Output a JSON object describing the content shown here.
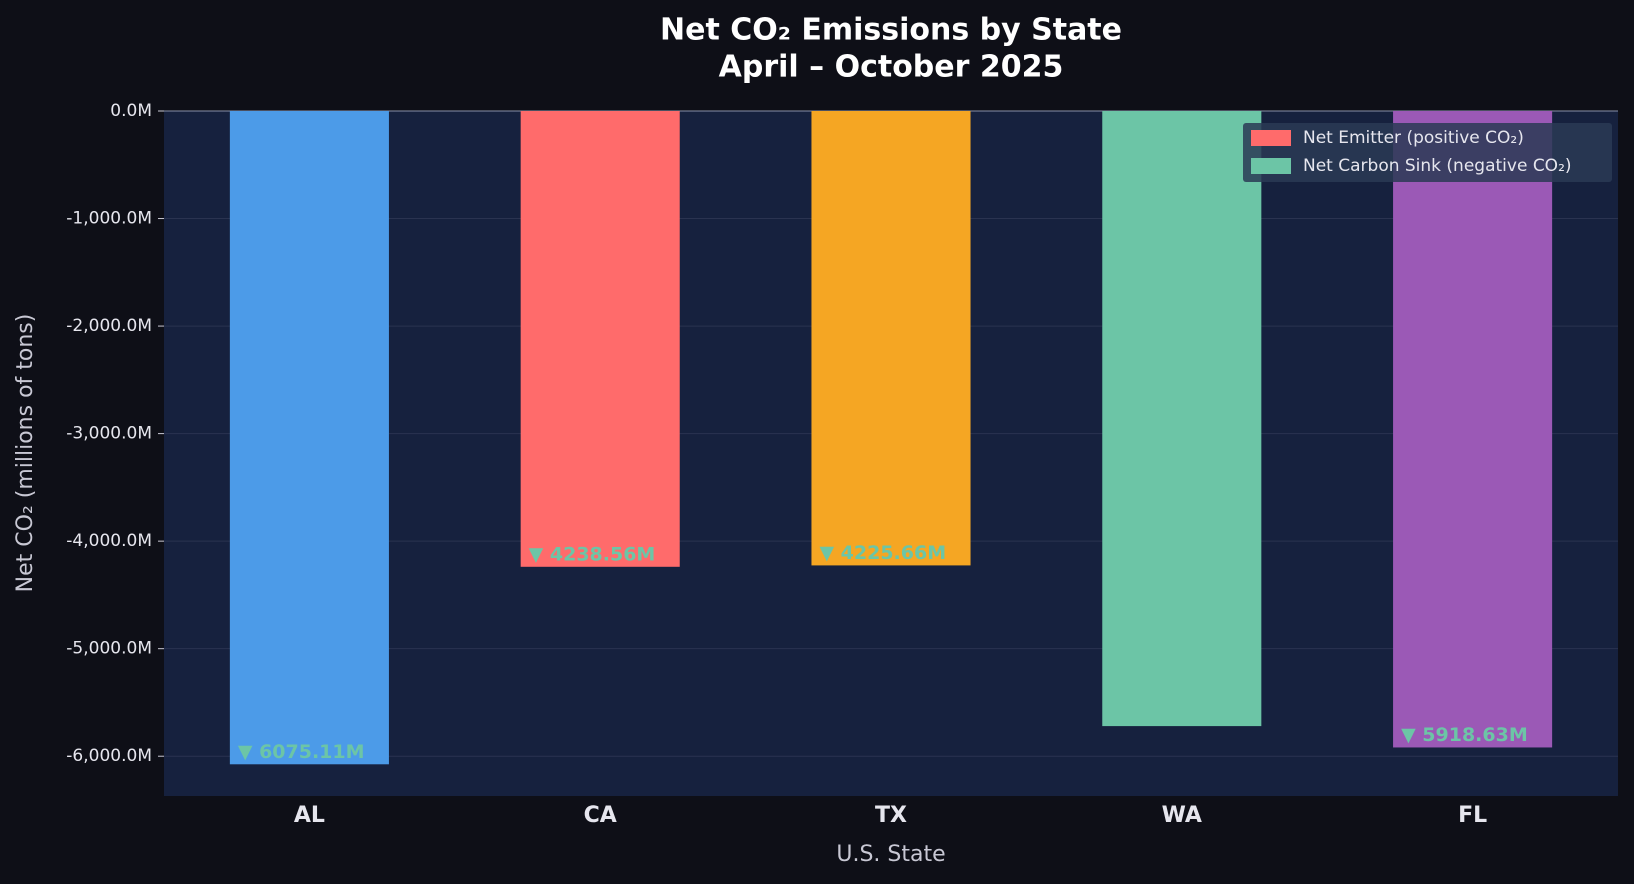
{
  "chart_data": {
    "type": "bar",
    "title": "Net CO₂ Emissions by State",
    "subtitle": "April – October 2025",
    "x_label": "U.S. State",
    "y_label": "Net CO₂ (millions of tons)",
    "categories": [
      "AL",
      "CA",
      "TX",
      "WA",
      "FL"
    ],
    "values": [
      -6075.11,
      -4238.56,
      -4225.66,
      -5720,
      -5918.63
    ],
    "value_labels": [
      "▼ 6075.11M",
      "▼ 4238.56M",
      "▼ 4225.66M",
      null,
      "▼ 5918.63M"
    ],
    "colors": [
      "#4c9be8",
      "#ff6b6b",
      "#f5a623",
      "#6cc5a6",
      "#9b59b6"
    ],
    "ylim": [
      -6370,
      0
    ],
    "yticks": [
      {
        "value": 0,
        "label": "0.0M"
      },
      {
        "value": -1000,
        "label": "-1,000.0M"
      },
      {
        "value": -2000,
        "label": "-2,000.0M"
      },
      {
        "value": -3000,
        "label": "-3,000.0M"
      },
      {
        "value": -4000,
        "label": "-4,000.0M"
      },
      {
        "value": -5000,
        "label": "-5,000.0M"
      },
      {
        "value": -6000,
        "label": "-6,000.0M"
      }
    ],
    "grid": true,
    "legend_position": "upper right",
    "legend": [
      {
        "label": "Net Emitter (positive CO₂)",
        "color": "#ff6b6b"
      },
      {
        "label": "Net Carbon Sink (negative CO₂)",
        "color": "#6cc5a6"
      }
    ]
  }
}
